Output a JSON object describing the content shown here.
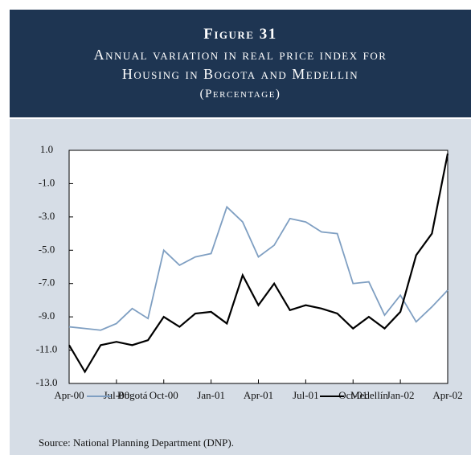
{
  "chart_data": {
    "type": "line",
    "figure_label": "Figure 31",
    "title": "Annual variation in real price index for",
    "title_line2": "Housing in Bogota and Medellin",
    "subtitle": "(Percentage)",
    "source": "Source:  National Planning Department  (DNP).",
    "categories": [
      "Apr-00",
      null,
      null,
      "Jul-00",
      null,
      null,
      "Oct-00",
      null,
      null,
      "Jan-01",
      null,
      null,
      "Apr-01",
      null,
      null,
      "Jul-01",
      null,
      null,
      "Oct-01",
      null,
      null,
      "Jan-02",
      null,
      null,
      "Apr-02"
    ],
    "series": [
      {
        "name": "Bogotá",
        "color": "#7f9fc2",
        "values": [
          -9.6,
          -9.7,
          -9.8,
          -9.4,
          -8.5,
          -9.1,
          -5.0,
          -5.9,
          -5.4,
          -5.2,
          -2.4,
          -3.3,
          -5.4,
          -4.7,
          -3.1,
          -3.3,
          -3.9,
          -4.0,
          -7.0,
          -6.9,
          -8.9,
          -7.7,
          -9.3,
          -8.4,
          -7.4
        ]
      },
      {
        "name": "Medellín",
        "color": "#000000",
        "values": [
          -10.7,
          -12.3,
          -10.7,
          -10.5,
          -10.7,
          -10.4,
          -9.0,
          -9.6,
          -8.8,
          -8.7,
          -9.4,
          -6.5,
          -8.3,
          -7.0,
          -8.6,
          -8.3,
          -8.5,
          -8.8,
          -9.7,
          -9.0,
          -9.7,
          -8.7,
          -5.3,
          -4.0,
          0.8
        ]
      }
    ],
    "ylim": [
      -13,
      1
    ],
    "yticks": [
      {
        "value": 1,
        "label": "1.0"
      },
      {
        "value": -1,
        "label": "-1.0"
      },
      {
        "value": -3,
        "label": "-3.0"
      },
      {
        "value": -5,
        "label": "-5.0"
      },
      {
        "value": -7,
        "label": "-7.0"
      },
      {
        "value": -9,
        "label": "-9.0"
      },
      {
        "value": -11,
        "label": "-11.0"
      },
      {
        "value": -13,
        "label": "-13.0"
      }
    ],
    "grid": false,
    "legend": "bottom"
  }
}
